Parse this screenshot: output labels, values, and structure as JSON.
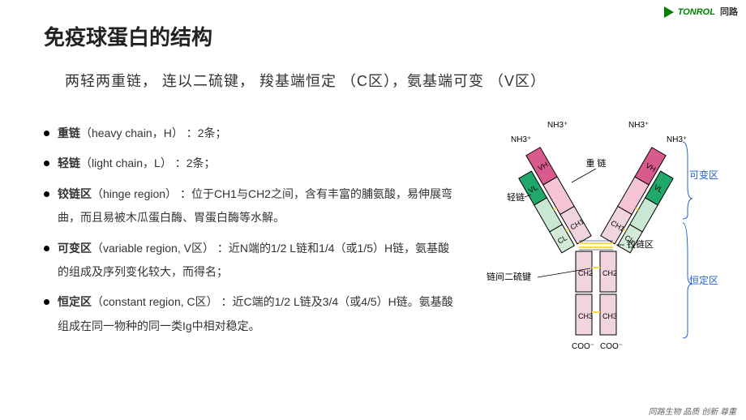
{
  "logo": {
    "brand": "TONROL",
    "cn": "同路"
  },
  "title": "免疫球蛋白的结构",
  "subtitle": "两轻两重链， 连以二硫键， 羧基端恒定 （C区），氨基端可变 （V区）",
  "bullets": [
    {
      "bold": "重链",
      "rest": "（heavy chain，H） ：2条；"
    },
    {
      "bold": "轻链",
      "rest": "（light chain，L） ：2条；"
    },
    {
      "bold": "铰链区",
      "rest": "（hinge region） ：位于CH1与CH2之间，含有丰富的脯氨酸，易伸展弯曲，而且易被木瓜蛋白酶、胃蛋白酶等水解。"
    },
    {
      "bold": "可变区",
      "rest": "（variable region, V区） ：近N端的1/2 L链和1/4（或1/5）H链，氨基酸的组成及序列变化较大，而得名；"
    },
    {
      "bold": "恒定区",
      "rest": "（constant region, C区） ：近C端的1/2 L链及3/4（或4/5）H链。氨基酸组成在同一物种的同一类Ig中相对稳定。"
    }
  ],
  "diagram": {
    "labels": {
      "nh3": "NH3⁺",
      "coo": "COO⁻",
      "vh": "VH",
      "vl": "VL",
      "cl": "CL",
      "ch1": "CH1",
      "ch2": "CH2",
      "ch3": "CH3",
      "heavy": "重 链",
      "light": "轻链",
      "hinge": "铰链区",
      "variable": "可变区",
      "constant": "恒定区",
      "disulfide": "链间二硫键"
    },
    "colors": {
      "vh": "#d95a8c",
      "vh_light": "#f5c5d6",
      "vl": "#1fa86a",
      "vl_light": "#c9e8d4",
      "ch": "#f0d4e0",
      "cl": "#d4ead8",
      "stroke": "#000",
      "yellow": "#f7d94c",
      "blue": "#2060d0"
    }
  },
  "footer": "同路生物 品质 创新 尊重"
}
